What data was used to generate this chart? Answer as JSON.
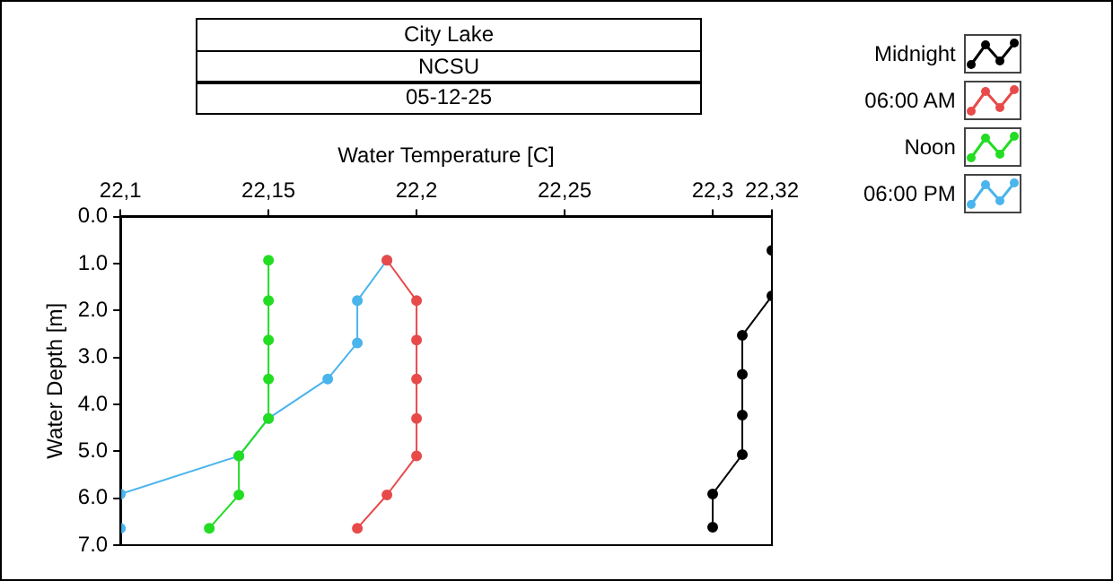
{
  "chart_data": {
    "type": "line",
    "title": "City Lake",
    "subtitle": "NCSU",
    "annotations": [
      "05-12-25"
    ],
    "xlabel": "Water Temperature [C]",
    "ylabel": "Water Depth [m]",
    "xlim": [
      22.1,
      22.32
    ],
    "xticks": [
      {
        "value": 22.1,
        "label": "22,1"
      },
      {
        "value": 22.15,
        "label": "22,15"
      },
      {
        "value": 22.2,
        "label": "22,2"
      },
      {
        "value": 22.25,
        "label": "22,25"
      },
      {
        "value": 22.3,
        "label": "22,3"
      },
      {
        "value": 22.32,
        "label": "22,32"
      }
    ],
    "ylim": [
      7,
      0
    ],
    "yticks": [
      {
        "value": 0,
        "label": "0.0"
      },
      {
        "value": 1,
        "label": "1.0"
      },
      {
        "value": 2,
        "label": "2.0"
      },
      {
        "value": 3,
        "label": "3.0"
      },
      {
        "value": 4,
        "label": "4.0"
      },
      {
        "value": 5,
        "label": "5.0"
      },
      {
        "value": 6,
        "label": "6.0"
      },
      {
        "value": 7,
        "label": "7.0"
      }
    ],
    "grid": false,
    "legend": "top right",
    "marker": "circle",
    "line_style": "solid",
    "series": [
      {
        "name": "Midnight",
        "color": "#000000",
        "x": [
          22.32,
          22.32,
          22.31,
          22.31,
          22.31,
          22.31,
          22.3,
          22.3
        ],
        "values": [
          0.72,
          1.69,
          2.53,
          3.36,
          4.23,
          5.07,
          5.91,
          6.62
        ]
      },
      {
        "name": "06:00 AM",
        "color": "#e84a4a",
        "x": [
          22.19,
          22.2,
          22.2,
          22.2,
          22.2,
          22.2,
          22.19,
          22.18
        ],
        "values": [
          0.93,
          1.79,
          2.63,
          3.46,
          4.3,
          5.1,
          5.93,
          6.64
        ]
      },
      {
        "name": "Noon",
        "color": "#22dd22",
        "x": [
          22.15,
          22.15,
          22.15,
          22.15,
          22.15,
          22.14,
          22.14,
          22.13
        ],
        "values": [
          0.93,
          1.79,
          2.63,
          3.46,
          4.3,
          5.1,
          5.93,
          6.64
        ]
      },
      {
        "name": "06:00 PM",
        "color": "#4ab4ec",
        "x": [
          22.19,
          22.18,
          22.18,
          22.17,
          22.15,
          22.14,
          22.1,
          22.1
        ],
        "values": [
          0.93,
          1.79,
          2.69,
          3.46,
          4.3,
          5.1,
          5.91,
          6.64
        ]
      }
    ]
  }
}
